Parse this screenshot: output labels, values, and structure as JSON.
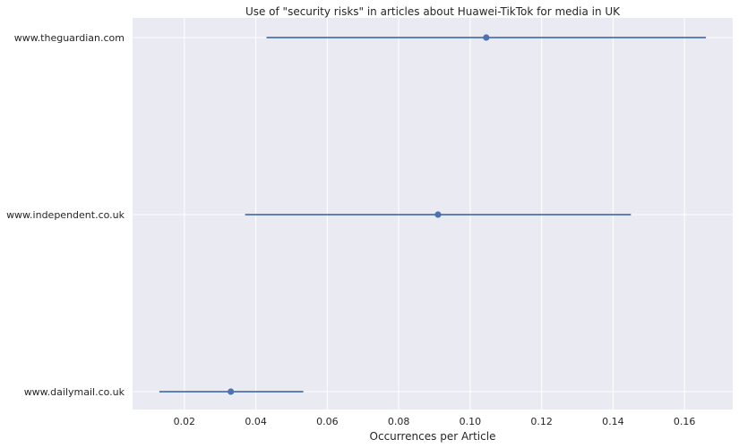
{
  "chart_data": {
    "type": "scatter",
    "title": "Use of \"security risks\" in articles about Huawei-TikTok for media in UK",
    "xlabel": "Occurrences per Article",
    "ylabel": "",
    "xlim": [
      0.0055,
      0.1735
    ],
    "x_ticks": [
      0.02,
      0.04,
      0.06,
      0.08,
      0.1,
      0.12,
      0.14,
      0.16
    ],
    "x_tick_labels": [
      "0.02",
      "0.04",
      "0.06",
      "0.08",
      "0.10",
      "0.12",
      "0.14",
      "0.16"
    ],
    "categories": [
      "www.theguardian.com",
      "www.independent.co.uk",
      "www.dailymail.co.uk"
    ],
    "values": [
      0.1045,
      0.091,
      0.033
    ],
    "error_low": [
      0.043,
      0.037,
      0.013
    ],
    "error_high": [
      0.166,
      0.145,
      0.0533
    ],
    "grid": true,
    "colors": {
      "background": "#eaeaf2",
      "grid": "#ffffff",
      "series": "#4c72b0",
      "text": "#262626"
    }
  }
}
